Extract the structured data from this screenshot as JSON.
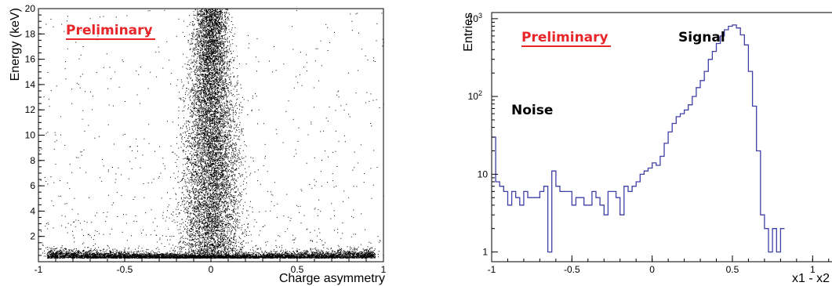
{
  "chart_data": [
    {
      "type": "scatter",
      "xlabel": "Charge asymmetry",
      "ylabel": "Energy (keV)",
      "xlim": [
        -1,
        1
      ],
      "ylim": [
        0,
        20
      ],
      "x_ticks": [
        "-1",
        "-0.5",
        "0",
        "0.5",
        "1"
      ],
      "y_ticks": [
        "2",
        "4",
        "6",
        "8",
        "10",
        "12",
        "14",
        "16",
        "18",
        "20"
      ],
      "annotations": [
        "Preliminary"
      ],
      "annotation_color": "#e8262a",
      "marker_color": "#000000",
      "description_of_distribution": {
        "band_center_x": 0.0,
        "band_halfwidth_x": [
          0.08,
          0.18
        ],
        "low_energy_floor_y": 0.3
      }
    },
    {
      "type": "histogram",
      "xlabel": "x1 - x2",
      "ylabel": "Entries",
      "xlim": [
        -1,
        1.15
      ],
      "ylim": [
        0.75,
        1200
      ],
      "yscale": "log",
      "x_ticks": [
        "-1",
        "-0.5",
        "0",
        "0.5",
        "1"
      ],
      "y_ticks": [
        "1",
        "10",
        "10^2",
        "10^3"
      ],
      "annotations": [
        "Preliminary",
        "Signal",
        "Noise"
      ],
      "annotation_color": "#e8262a",
      "line_color": "#3f3fa8",
      "bin_width": 0.025,
      "bin_start": -1.0,
      "values": [
        30,
        8,
        7,
        6,
        4,
        6,
        5,
        4,
        6,
        5,
        5,
        5,
        6,
        7,
        1,
        11,
        7,
        6,
        6,
        6,
        4,
        5,
        5,
        4,
        4,
        6,
        5,
        4,
        3,
        6,
        6,
        5,
        3,
        7,
        6,
        7,
        8,
        10,
        11,
        12,
        14,
        13,
        17,
        25,
        35,
        45,
        55,
        60,
        67,
        78,
        100,
        130,
        160,
        210,
        300,
        380,
        480,
        600,
        720,
        800,
        830,
        760,
        620,
        460,
        210,
        75,
        20,
        3,
        2,
        1,
        2,
        1,
        2
      ]
    }
  ]
}
